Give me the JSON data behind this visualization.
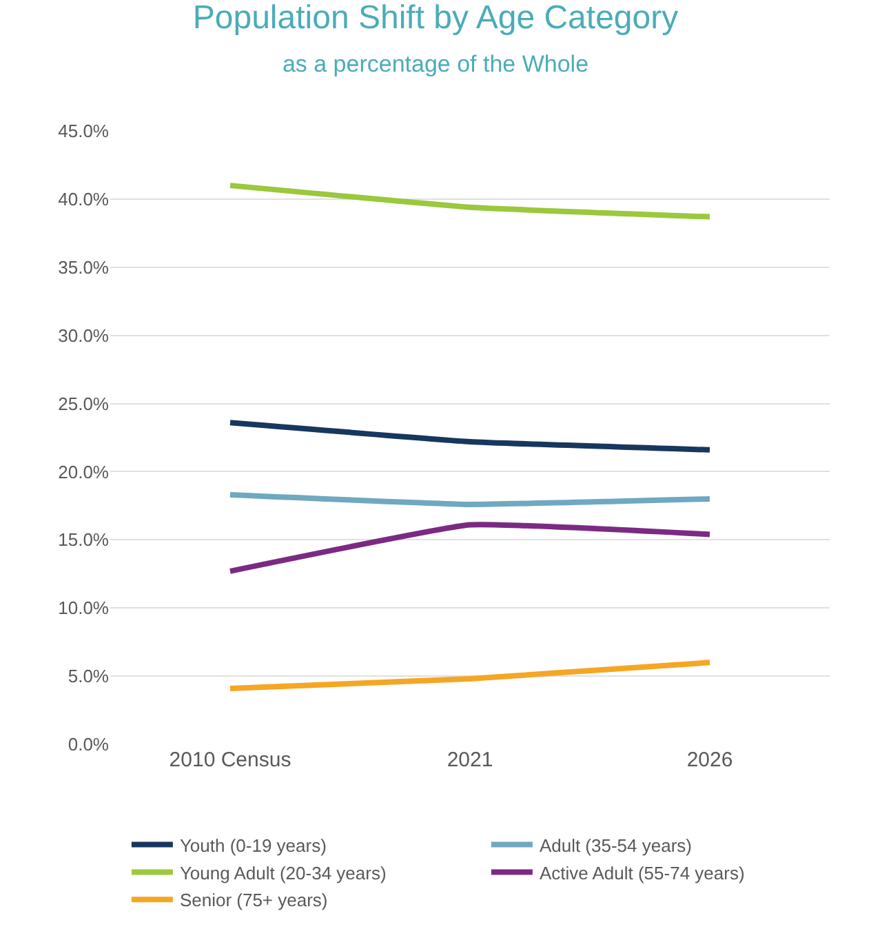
{
  "chart_data": {
    "type": "line",
    "title": "Population Shift by Age Category",
    "subtitle": "as a percentage of the Whole",
    "categories": [
      "2010 Census",
      "2021",
      "2026"
    ],
    "series": [
      {
        "name": "Youth (0-19 years)",
        "color": "#17375e",
        "values": [
          23.6,
          22.2,
          21.6
        ]
      },
      {
        "name": "Adult (35-54 years)",
        "color": "#6fa8c0",
        "values": [
          18.3,
          17.6,
          18.0
        ]
      },
      {
        "name": "Young Adult (20-34 years)",
        "color": "#9bc83c",
        "values": [
          41.0,
          39.4,
          38.7
        ]
      },
      {
        "name": "Active Adult (55-74 years)",
        "color": "#7b2a83",
        "values": [
          12.7,
          16.1,
          15.4
        ]
      },
      {
        "name": "Senior (75+ years)",
        "color": "#f5a623",
        "values": [
          4.1,
          4.8,
          6.0
        ]
      }
    ],
    "ylim": [
      0,
      45
    ],
    "yticks": [
      {
        "value": 0,
        "label": "0.0%"
      },
      {
        "value": 5,
        "label": "5.0%"
      },
      {
        "value": 10,
        "label": "10.0%"
      },
      {
        "value": 15,
        "label": "15.0%"
      },
      {
        "value": 20,
        "label": "20.0%"
      },
      {
        "value": 25,
        "label": "25.0%"
      },
      {
        "value": 30,
        "label": "30.0%"
      },
      {
        "value": 35,
        "label": "35.0%"
      },
      {
        "value": 40,
        "label": "40.0%"
      },
      {
        "value": 45,
        "label": "45.0%"
      }
    ],
    "grid": "y",
    "legend": "bottom",
    "marker": "none",
    "line_style": "solid"
  }
}
